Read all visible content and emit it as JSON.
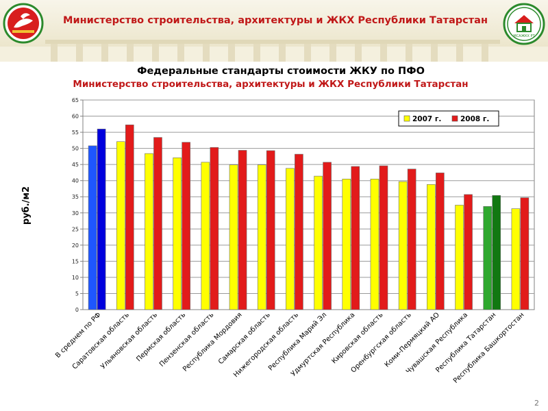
{
  "header": {
    "title": "Министерство строительства, архитектуры и ЖКХ Республики Татарстан",
    "right_logo_text": "МСАЖКХ РТ"
  },
  "page_number": "2",
  "colors": {
    "bar_2007": "#ffff00",
    "bar_2008": "#e21b1b",
    "highlight_avg_2007": "#1e56ff",
    "highlight_avg_2008": "#0000dd",
    "highlight_tatarstan_2007": "#2fa82f",
    "highlight_tatarstan_2008": "#127812",
    "title_red": "#c01818"
  },
  "chart_data": {
    "type": "bar",
    "title": "Федеральные стандарты стоимости ЖКУ по ПФО",
    "subtitle": "Министерство строительства, архитектуры и ЖКХ Республики Татарстан",
    "xlabel": "",
    "ylabel": "руб./м2",
    "ylim": [
      0,
      65
    ],
    "yticks": [
      0,
      5,
      10,
      15,
      20,
      25,
      30,
      35,
      40,
      45,
      50,
      55,
      60,
      65
    ],
    "grid": true,
    "legend_position": "top-right",
    "categories": [
      "В среднем по РФ",
      "Саратовская область",
      "Ульяновская область",
      "Пермская область",
      "Пензенская область",
      "Республика Мордовия",
      "Самарская область",
      "Нижегородская область",
      "Республика Марий Эл",
      "Удмуртская Республика",
      "Кировская область",
      "Оренбургская область",
      "Коми-Пермяцкий АО",
      "Чувашская Республика",
      "Республика Татарстан",
      "Республика Башкортостан"
    ],
    "series": [
      {
        "name": "2007 г.",
        "values": [
          50.8,
          52.1,
          48.4,
          47.1,
          45.7,
          44.9,
          44.9,
          43.8,
          41.4,
          40.5,
          40.5,
          39.7,
          38.8,
          32.4,
          32.0,
          31.3
        ]
      },
      {
        "name": "2008 г.",
        "values": [
          56.0,
          57.3,
          53.4,
          51.9,
          50.3,
          49.4,
          49.3,
          48.2,
          45.7,
          44.4,
          44.6,
          43.6,
          42.4,
          35.7,
          35.4,
          34.7
        ]
      }
    ]
  }
}
